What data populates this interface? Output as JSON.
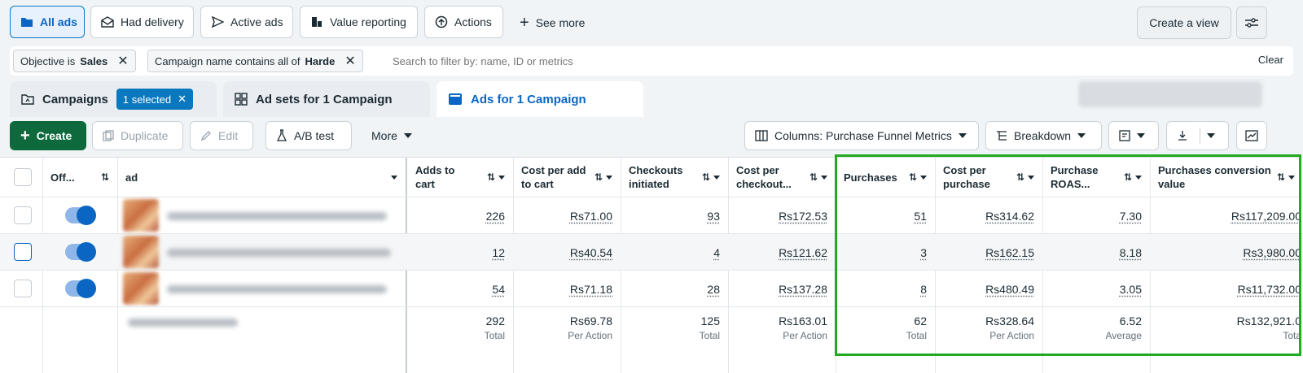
{
  "top_tabs": [
    {
      "label": "All ads",
      "icon": "folder-icon",
      "selected": true
    },
    {
      "label": "Had delivery",
      "icon": "envelope-icon"
    },
    {
      "label": "Active ads",
      "icon": "send-icon"
    },
    {
      "label": "Value reporting",
      "icon": "coins-icon"
    },
    {
      "label": "Actions",
      "icon": "arrow-up-circle-icon"
    },
    {
      "label": "See more",
      "icon": "plus-icon"
    }
  ],
  "create_view_label": "Create a view",
  "filters": {
    "chips": [
      {
        "prefix": "Objective is",
        "value": "Sales"
      },
      {
        "prefix": "Campaign name contains all of",
        "value": "Harde"
      }
    ],
    "search_placeholder": "Search to filter by: name, ID or metrics",
    "clear_label": "Clear"
  },
  "level_tabs": {
    "campaigns": "Campaigns",
    "selected_badge": "1 selected",
    "adsets": "Ad sets for 1 Campaign",
    "ads": "Ads for 1 Campaign"
  },
  "toolbar": {
    "create": "Create",
    "duplicate": "Duplicate",
    "edit": "Edit",
    "ab_test": "A/B test",
    "more": "More",
    "columns": "Columns: Purchase Funnel Metrics",
    "breakdown": "Breakdown"
  },
  "table": {
    "headers": {
      "off": "Off...",
      "ad": "ad",
      "adds_to_cart": "Adds to cart",
      "cost_per_add": "Cost per add to cart",
      "checkouts": "Checkouts initiated",
      "cost_per_checkout": "Cost per checkout...",
      "purchases": "Purchases",
      "cost_per_purchase": "Cost per purchase",
      "roas": "Purchase ROAS...",
      "conv_value": "Purchases conversion value"
    },
    "rows": [
      {
        "adds": "226",
        "cpa": "Rs71.00",
        "checkouts": "93",
        "cpc": "Rs172.53",
        "purchases": "51",
        "cpp": "Rs314.62",
        "roas": "7.30",
        "value": "Rs117,209.00"
      },
      {
        "adds": "12",
        "cpa": "Rs40.54",
        "checkouts": "4",
        "cpc": "Rs121.62",
        "purchases": "3",
        "cpp": "Rs162.15",
        "roas": "8.18",
        "value": "Rs3,980.00"
      },
      {
        "adds": "54",
        "cpa": "Rs71.18",
        "checkouts": "28",
        "cpc": "Rs137.28",
        "purchases": "8",
        "cpp": "Rs480.49",
        "roas": "3.05",
        "value": "Rs11,732.00"
      }
    ],
    "totals": {
      "adds": "292",
      "adds_sub": "Total",
      "cpa": "Rs69.78",
      "cpa_sub": "Per Action",
      "checkouts": "125",
      "checkouts_sub": "Total",
      "cpc": "Rs163.01",
      "cpc_sub": "Per Action",
      "purchases": "62",
      "purchases_sub": "Total",
      "cpp": "Rs328.64",
      "cpp_sub": "Per Action",
      "roas": "6.52",
      "roas_sub": "Average",
      "value": "Rs132,921.0",
      "value_sub": "Tota"
    }
  },
  "colors": {
    "accent": "#0a66c2",
    "create_green": "#0e6a3d",
    "highlight": "#22aa22"
  }
}
